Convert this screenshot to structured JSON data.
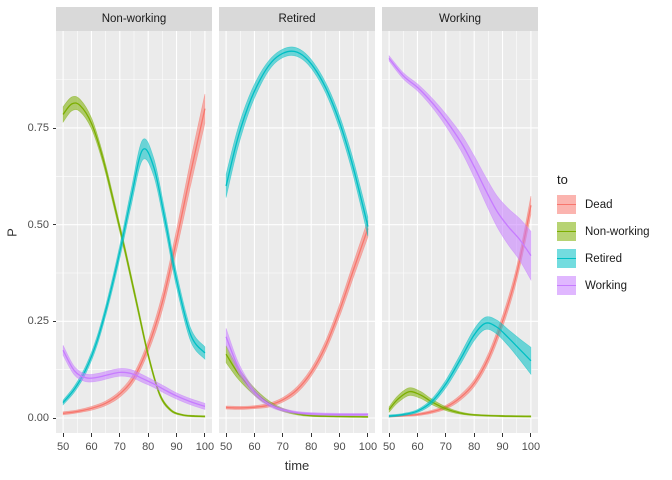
{
  "figure": {
    "background": "#FFFFFF",
    "panel_background": "#EBEBEB",
    "grid_color": "#FFFFFF",
    "strip_background": "#D9D9D9",
    "strip_text_color": "#1A1A1A",
    "axis_text_color": "#4D4D4D",
    "axis_title_color": "#333333",
    "tick_color": "#333333",
    "ribbon_alpha": 0.55
  },
  "chart_data": {
    "type": "line",
    "subtype": "faceted probability curves with confidence ribbons (ggplot2 style)",
    "title": "",
    "xlabel": "time",
    "ylabel": "P",
    "legend_title": "to",
    "legend_position": "right",
    "grid": "white major+minor gridlines on gray panel",
    "x_range": [
      47.5,
      102.5
    ],
    "y_range": [
      -0.039,
      1.0
    ],
    "x_ticks": [
      50,
      60,
      70,
      80,
      90,
      100
    ],
    "x_minor_ticks": [
      55,
      65,
      75,
      85,
      95
    ],
    "y_ticks": [
      0.0,
      0.25,
      0.5,
      0.75
    ],
    "y_tick_labels": [
      "0.00",
      "0.25",
      "0.50",
      "0.75"
    ],
    "y_minor_ticks": [
      0.125,
      0.375,
      0.625,
      0.875
    ],
    "series_names": [
      "Dead",
      "Non-working",
      "Retired",
      "Working"
    ],
    "series_colors": {
      "Dead": "#F8766D",
      "Non-working": "#7CAE00",
      "Retired": "#00BFC4",
      "Working": "#C77CFF"
    },
    "points_format": "[time, P, ci_half_width]",
    "facets": [
      {
        "label": "Non-working",
        "series": [
          {
            "name": "Dead",
            "points": [
              [
                50,
                0.012,
                0.004
              ],
              [
                55,
                0.017,
                0.004
              ],
              [
                60,
                0.025,
                0.005
              ],
              [
                65,
                0.038,
                0.006
              ],
              [
                70,
                0.062,
                0.008
              ],
              [
                75,
                0.105,
                0.011
              ],
              [
                80,
                0.185,
                0.015
              ],
              [
                85,
                0.3,
                0.021
              ],
              [
                90,
                0.46,
                0.027
              ],
              [
                95,
                0.635,
                0.033
              ],
              [
                100,
                0.8,
                0.038
              ]
            ]
          },
          {
            "name": "Non-working",
            "points": [
              [
                50,
                0.785,
                0.02
              ],
              [
                53,
                0.812,
                0.018
              ],
              [
                56,
                0.808,
                0.016
              ],
              [
                60,
                0.762,
                0.014
              ],
              [
                64,
                0.672,
                0.012
              ],
              [
                68,
                0.553,
                0.011
              ],
              [
                72,
                0.428,
                0.01
              ],
              [
                76,
                0.295,
                0.009
              ],
              [
                80,
                0.163,
                0.007
              ],
              [
                84,
                0.062,
                0.005
              ],
              [
                88,
                0.02,
                0.003
              ],
              [
                92,
                0.008,
                0.002
              ],
              [
                96,
                0.005,
                0.002
              ],
              [
                100,
                0.004,
                0.002
              ]
            ]
          },
          {
            "name": "Retired",
            "points": [
              [
                50,
                0.04,
                0.006
              ],
              [
                54,
                0.075,
                0.008
              ],
              [
                58,
                0.125,
                0.01
              ],
              [
                62,
                0.2,
                0.012
              ],
              [
                66,
                0.305,
                0.014
              ],
              [
                70,
                0.43,
                0.017
              ],
              [
                74,
                0.57,
                0.021
              ],
              [
                78,
                0.693,
                0.026
              ],
              [
                82,
                0.648,
                0.023
              ],
              [
                86,
                0.51,
                0.021
              ],
              [
                90,
                0.357,
                0.019
              ],
              [
                95,
                0.215,
                0.017
              ],
              [
                100,
                0.168,
                0.016
              ]
            ]
          },
          {
            "name": "Working",
            "points": [
              [
                50,
                0.175,
                0.013
              ],
              [
                54,
                0.122,
                0.011
              ],
              [
                58,
                0.104,
                0.01
              ],
              [
                62,
                0.105,
                0.01
              ],
              [
                66,
                0.112,
                0.01
              ],
              [
                70,
                0.118,
                0.01
              ],
              [
                74,
                0.115,
                0.01
              ],
              [
                78,
                0.102,
                0.01
              ],
              [
                82,
                0.088,
                0.009
              ],
              [
                86,
                0.072,
                0.009
              ],
              [
                90,
                0.057,
                0.008
              ],
              [
                95,
                0.042,
                0.008
              ],
              [
                100,
                0.03,
                0.008
              ]
            ]
          }
        ]
      },
      {
        "label": "Retired",
        "series": [
          {
            "name": "Dead",
            "points": [
              [
                50,
                0.027,
                0.004
              ],
              [
                55,
                0.026,
                0.004
              ],
              [
                60,
                0.028,
                0.004
              ],
              [
                65,
                0.033,
                0.005
              ],
              [
                70,
                0.047,
                0.006
              ],
              [
                75,
                0.073,
                0.008
              ],
              [
                80,
                0.118,
                0.01
              ],
              [
                85,
                0.185,
                0.013
              ],
              [
                90,
                0.278,
                0.016
              ],
              [
                95,
                0.385,
                0.019
              ],
              [
                100,
                0.49,
                0.022
              ]
            ]
          },
          {
            "name": "Non-working",
            "points": [
              [
                50,
                0.165,
                0.022
              ],
              [
                54,
                0.118,
                0.015
              ],
              [
                58,
                0.083,
                0.011
              ],
              [
                62,
                0.055,
                0.008
              ],
              [
                66,
                0.035,
                0.005
              ],
              [
                70,
                0.021,
                0.004
              ],
              [
                75,
                0.011,
                0.003
              ],
              [
                80,
                0.006,
                0.002
              ],
              [
                90,
                0.004,
                0.002
              ],
              [
                100,
                0.003,
                0.002
              ]
            ]
          },
          {
            "name": "Retired",
            "points": [
              [
                50,
                0.6,
                0.03
              ],
              [
                54,
                0.72,
                0.025
              ],
              [
                58,
                0.81,
                0.02
              ],
              [
                62,
                0.875,
                0.016
              ],
              [
                66,
                0.92,
                0.012
              ],
              [
                70,
                0.943,
                0.011
              ],
              [
                74,
                0.948,
                0.011
              ],
              [
                78,
                0.932,
                0.011
              ],
              [
                82,
                0.895,
                0.012
              ],
              [
                86,
                0.84,
                0.014
              ],
              [
                90,
                0.765,
                0.017
              ],
              [
                94,
                0.67,
                0.02
              ],
              [
                97,
                0.585,
                0.022
              ],
              [
                100,
                0.495,
                0.025
              ]
            ]
          },
          {
            "name": "Working",
            "points": [
              [
                50,
                0.21,
                0.022
              ],
              [
                54,
                0.135,
                0.014
              ],
              [
                58,
                0.085,
                0.01
              ],
              [
                62,
                0.052,
                0.007
              ],
              [
                66,
                0.032,
                0.005
              ],
              [
                70,
                0.021,
                0.004
              ],
              [
                75,
                0.014,
                0.003
              ],
              [
                80,
                0.011,
                0.003
              ],
              [
                90,
                0.009,
                0.003
              ],
              [
                100,
                0.009,
                0.003
              ]
            ]
          }
        ]
      },
      {
        "label": "Working",
        "series": [
          {
            "name": "Dead",
            "points": [
              [
                50,
                0.004,
                0.002
              ],
              [
                55,
                0.006,
                0.002
              ],
              [
                60,
                0.009,
                0.003
              ],
              [
                65,
                0.016,
                0.004
              ],
              [
                70,
                0.028,
                0.005
              ],
              [
                75,
                0.052,
                0.007
              ],
              [
                80,
                0.09,
                0.009
              ],
              [
                85,
                0.155,
                0.012
              ],
              [
                90,
                0.25,
                0.015
              ],
              [
                94,
                0.345,
                0.017
              ],
              [
                97,
                0.44,
                0.02
              ],
              [
                100,
                0.55,
                0.024
              ]
            ]
          },
          {
            "name": "Non-working",
            "points": [
              [
                50,
                0.022,
                0.007
              ],
              [
                53,
                0.048,
                0.009
              ],
              [
                57,
                0.068,
                0.01
              ],
              [
                61,
                0.06,
                0.009
              ],
              [
                65,
                0.042,
                0.007
              ],
              [
                70,
                0.024,
                0.005
              ],
              [
                75,
                0.013,
                0.003
              ],
              [
                80,
                0.008,
                0.002
              ],
              [
                90,
                0.005,
                0.002
              ],
              [
                100,
                0.004,
                0.002
              ]
            ]
          },
          {
            "name": "Retired",
            "points": [
              [
                50,
                0.005,
                0.003
              ],
              [
                55,
                0.009,
                0.003
              ],
              [
                60,
                0.018,
                0.004
              ],
              [
                65,
                0.042,
                0.007
              ],
              [
                70,
                0.088,
                0.01
              ],
              [
                75,
                0.15,
                0.013
              ],
              [
                80,
                0.215,
                0.015
              ],
              [
                84,
                0.245,
                0.016
              ],
              [
                88,
                0.235,
                0.018
              ],
              [
                92,
                0.208,
                0.021
              ],
              [
                96,
                0.178,
                0.027
              ],
              [
                100,
                0.148,
                0.035
              ]
            ]
          },
          {
            "name": "Working",
            "points": [
              [
                50,
                0.93,
                0.007
              ],
              [
                55,
                0.885,
                0.008
              ],
              [
                60,
                0.855,
                0.009
              ],
              [
                64,
                0.825,
                0.011
              ],
              [
                68,
                0.79,
                0.014
              ],
              [
                72,
                0.75,
                0.018
              ],
              [
                76,
                0.705,
                0.023
              ],
              [
                80,
                0.65,
                0.028
              ],
              [
                84,
                0.59,
                0.034
              ],
              [
                88,
                0.535,
                0.04
              ],
              [
                92,
                0.495,
                0.047
              ],
              [
                96,
                0.462,
                0.054
              ],
              [
                100,
                0.42,
                0.063
              ]
            ]
          }
        ]
      }
    ]
  }
}
